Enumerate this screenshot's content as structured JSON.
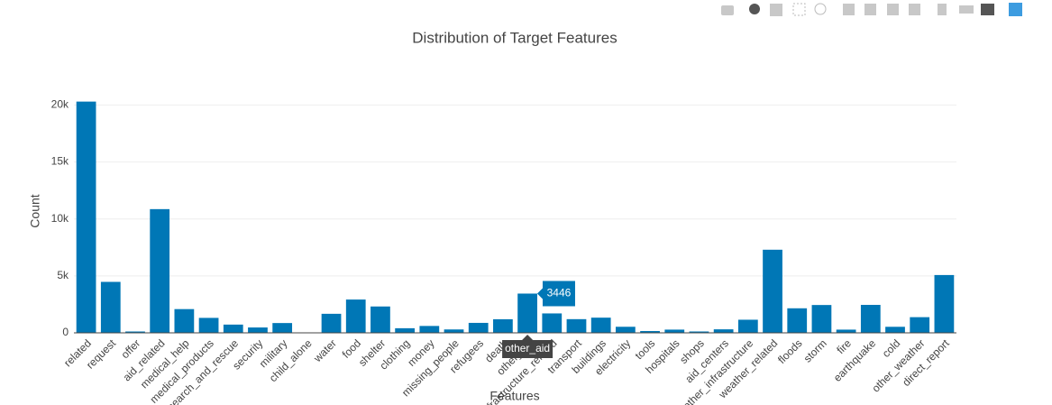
{
  "chart_data": {
    "type": "bar",
    "title": "Distribution of Target Features",
    "x_label": "Features",
    "y_label": "Count",
    "categories": [
      "related",
      "request",
      "offer",
      "aid_related",
      "medical_help",
      "medical_products",
      "search_and_rescue",
      "security",
      "military",
      "child_alone",
      "water",
      "food",
      "shelter",
      "clothing",
      "money",
      "missing_people",
      "refugees",
      "death",
      "other_aid",
      "infrastructure_related",
      "transport",
      "buildings",
      "electricity",
      "tools",
      "hospitals",
      "shops",
      "aid_centers",
      "other_infrastructure",
      "weather_related",
      "floods",
      "storm",
      "fire",
      "earthquake",
      "cold",
      "other_weather",
      "direct_report"
    ],
    "values": [
      20300,
      4474,
      118,
      10860,
      2084,
      1313,
      724,
      471,
      860,
      0,
      1672,
      2923,
      2314,
      405,
      604,
      298,
      875,
      1194,
      3446,
      1705,
      1201,
      1333,
      532,
      159,
      283,
      120,
      309,
      1151,
      7297,
      2155,
      2443,
      282,
      2455,
      530,
      1376,
      5075
    ],
    "color": "#0077b6",
    "ylim": [
      0,
      21300
    ],
    "yticks": [
      0,
      {
        "value": 5000,
        "label": "5k"
      },
      {
        "value": 10000,
        "label": "10k"
      },
      {
        "value": 15000,
        "label": "15k"
      },
      {
        "value": 20000,
        "label": "20k"
      }
    ],
    "grid": true,
    "hover_index": 18
  }
}
